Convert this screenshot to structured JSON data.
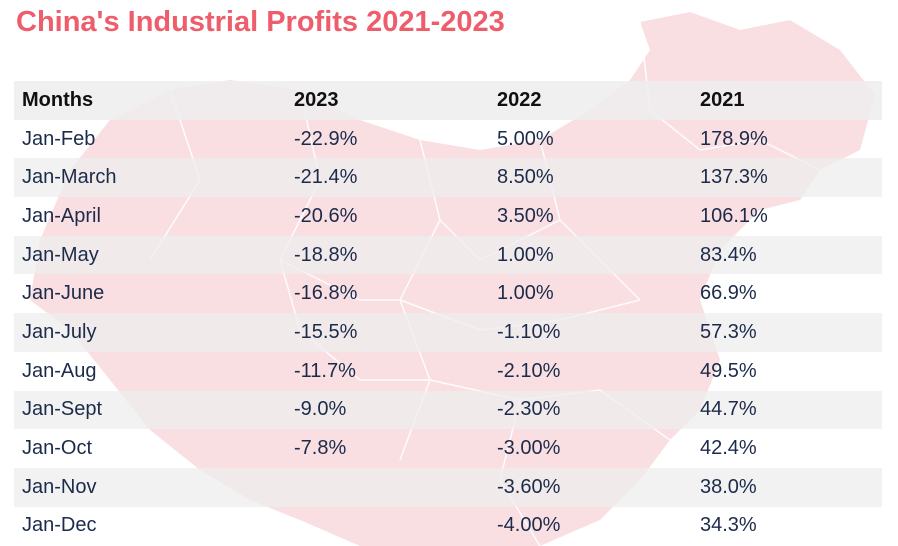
{
  "title": "China's Industrial Profits 2021-2023",
  "colors": {
    "title": "#ee5d6c",
    "map_fill": "#f9dfe2",
    "header_bg": "#eeeeee",
    "stripe_bg": "#eeeeee",
    "text": "#1c2b4a"
  },
  "chart_data": {
    "type": "table",
    "title": "China's Industrial Profits 2021-2023",
    "columns": [
      "Months",
      "2023",
      "2022",
      "2021"
    ],
    "rows": [
      [
        "Jan-Feb",
        "-22.9%",
        "5.00%",
        "178.9%"
      ],
      [
        "Jan-March",
        "-21.4%",
        "8.50%",
        "137.3%"
      ],
      [
        "Jan-April",
        "-20.6%",
        "3.50%",
        "106.1%"
      ],
      [
        "Jan-May",
        "-18.8%",
        "1.00%",
        "83.4%"
      ],
      [
        "Jan-June",
        "-16.8%",
        "1.00%",
        "66.9%"
      ],
      [
        "Jan-July",
        "-15.5%",
        "-1.10%",
        "57.3%"
      ],
      [
        "Jan-Aug",
        "-11.7%",
        "-2.10%",
        "49.5%"
      ],
      [
        "Jan-Sept",
        "-9.0%",
        "-2.30%",
        "44.7%"
      ],
      [
        "Jan-Oct",
        "-7.8%",
        "-3.00%",
        "42.4%"
      ],
      [
        "Jan-Nov",
        "",
        "-3.60%",
        "38.0%"
      ],
      [
        "Jan-Dec",
        "",
        "-4.00%",
        "34.3%"
      ]
    ]
  }
}
